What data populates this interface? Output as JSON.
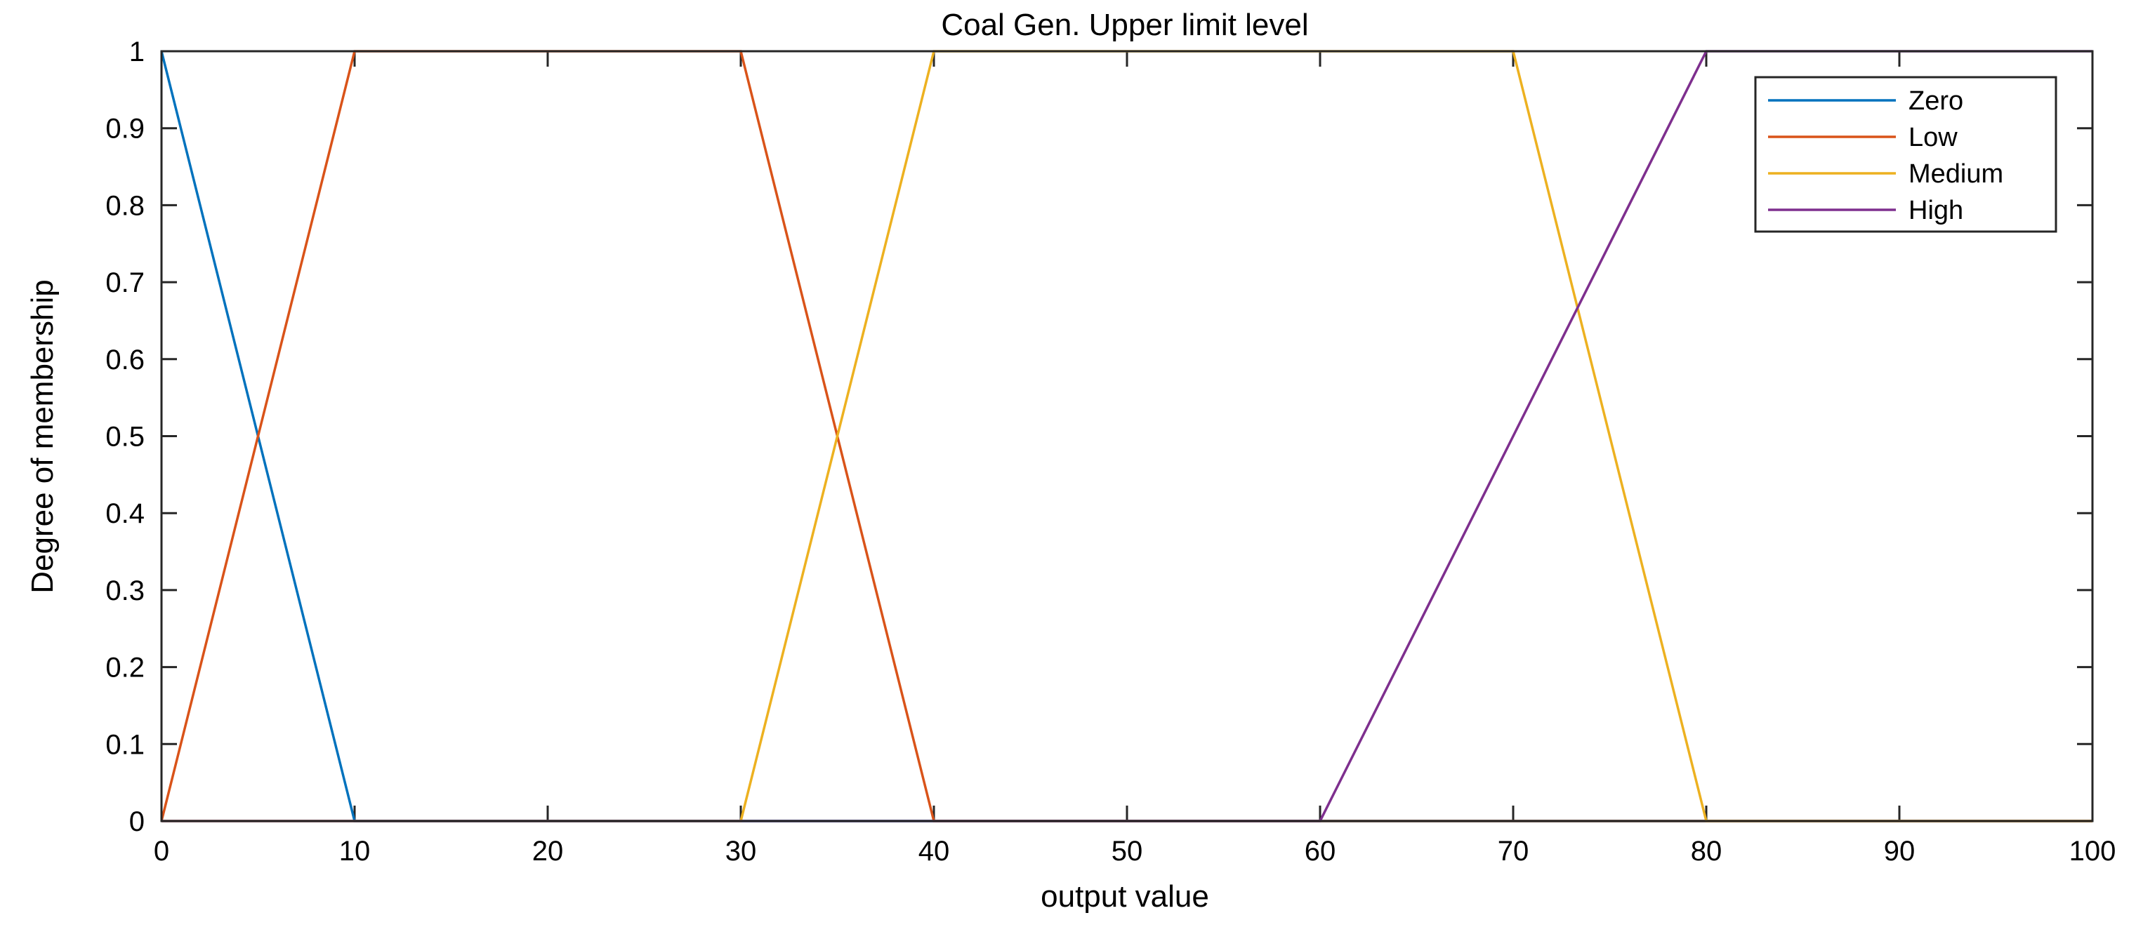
{
  "chart_data": {
    "type": "line",
    "title": "Coal Gen. Upper limit level",
    "xlabel": "output value",
    "ylabel": "Degree of membership",
    "xlim": [
      0,
      100
    ],
    "ylim": [
      0,
      1
    ],
    "xticks": [
      0,
      10,
      20,
      30,
      40,
      50,
      60,
      70,
      80,
      90,
      100
    ],
    "yticks": [
      0,
      0.1,
      0.2,
      0.3,
      0.4,
      0.5,
      0.6,
      0.7,
      0.8,
      0.9,
      1
    ],
    "xtick_labels": [
      "0",
      "10",
      "20",
      "30",
      "40",
      "50",
      "60",
      "70",
      "80",
      "90",
      "100"
    ],
    "ytick_labels": [
      "0",
      "0.1",
      "0.2",
      "0.3",
      "0.4",
      "0.5",
      "0.6",
      "0.7",
      "0.8",
      "0.9",
      "1"
    ],
    "grid": false,
    "legend_position": "top-right",
    "series": [
      {
        "name": "Zero",
        "color": "#0072BD",
        "x": [
          0,
          10,
          100
        ],
        "y": [
          1,
          0,
          0
        ]
      },
      {
        "name": "Low",
        "color": "#D95319",
        "x": [
          0,
          10,
          30,
          40,
          100
        ],
        "y": [
          0,
          1,
          1,
          0,
          0
        ]
      },
      {
        "name": "Medium",
        "color": "#EDB120",
        "x": [
          0,
          30,
          40,
          70,
          80,
          100
        ],
        "y": [
          0,
          0,
          1,
          1,
          0,
          0
        ]
      },
      {
        "name": "High",
        "color": "#7E2F8E",
        "x": [
          0,
          60,
          80,
          100
        ],
        "y": [
          0,
          0,
          1,
          1
        ]
      }
    ]
  }
}
